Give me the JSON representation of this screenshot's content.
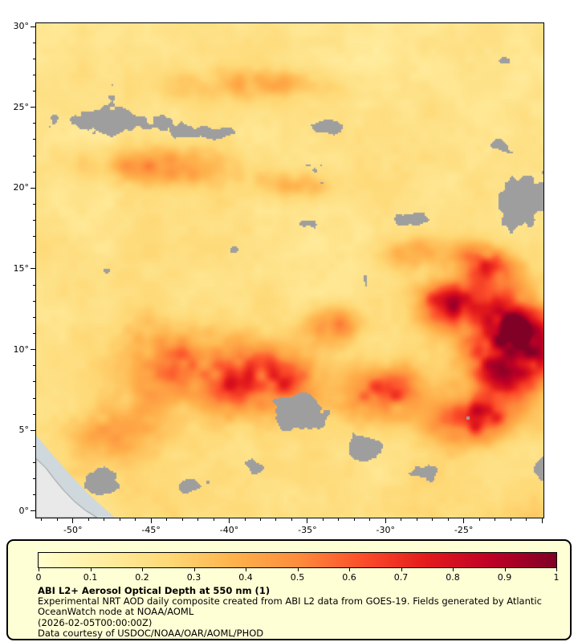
{
  "map": {
    "lat_tick_labels": [
      {
        "value": 30,
        "label": "30°"
      },
      {
        "value": 25,
        "label": "25°"
      },
      {
        "value": 20,
        "label": "20°"
      },
      {
        "value": 15,
        "label": "15°"
      },
      {
        "value": 10,
        "label": "10°"
      },
      {
        "value": 5,
        "label": "5°"
      },
      {
        "value": 0,
        "label": "0°"
      }
    ],
    "lon_tick_labels": [
      {
        "value": -50,
        "label": "-50°"
      },
      {
        "value": -45,
        "label": "-45°"
      },
      {
        "value": -40,
        "label": "-40°"
      },
      {
        "value": -35,
        "label": "-35°"
      },
      {
        "value": -30,
        "label": "-30°"
      },
      {
        "value": -25,
        "label": "-25°"
      }
    ]
  },
  "legend": {
    "background": "#ffffd6",
    "title": "ABI L2+ Aerosol Optical Depth at 550 nm (1)",
    "lines": [
      "Experimental NRT AOD daily composite created from ABI L2 data from GOES-19. Fields generated by Atlantic",
      "OceanWatch node at NOAA/AOML",
      "(2026-02-05T00:00:00Z)",
      "Data courtesy of USDOC/NOAA/OAR/AOML/PHOD"
    ],
    "colorbar_ticks": [
      {
        "value": 0,
        "label": "0"
      },
      {
        "value": 0.1,
        "label": "0.1"
      },
      {
        "value": 0.2,
        "label": "0.2"
      },
      {
        "value": 0.3,
        "label": "0.3"
      },
      {
        "value": 0.4,
        "label": "0.4"
      },
      {
        "value": 0.5,
        "label": "0.5"
      },
      {
        "value": 0.6,
        "label": "0.6"
      },
      {
        "value": 0.7,
        "label": "0.7"
      },
      {
        "value": 0.8,
        "label": "0.8"
      },
      {
        "value": 0.9,
        "label": "0.9"
      },
      {
        "value": 1,
        "label": "1"
      }
    ]
  },
  "chart_data": {
    "type": "heatmap",
    "title": "ABI L2+ Aerosol Optical Depth at 550 nm (1)",
    "variable": "Aerosol Optical Depth at 550 nm",
    "value_range": [
      0,
      1
    ],
    "lon_range": [
      -52.35,
      -19.9
    ],
    "lat_range": [
      -0.4,
      30.2
    ],
    "lat_ticks": [
      0,
      5,
      10,
      15,
      20,
      25,
      30
    ],
    "lon_ticks": [
      -50,
      -45,
      -40,
      -35,
      -30,
      -25
    ],
    "colormap": {
      "name": "YlOrRd",
      "stops": [
        "#ffffcc",
        "#ffeda0",
        "#fed976",
        "#feb24c",
        "#fd8d3c",
        "#fc4e2a",
        "#e31a1c",
        "#bd0026",
        "#800026"
      ]
    },
    "missing_data_color": "#9e9e9e",
    "land_color": "#e9e9e9",
    "coastal_nodata_color": "#cfd8dc",
    "coastline_color": "#8f8f8f",
    "field_model": {
      "base": 0.1,
      "noise_amp": 0.16,
      "south_gradient": 0.05,
      "aod_blobs": [
        [
          -22.0,
          10.2,
          3.2,
          3.6,
          0.95
        ],
        [
          -25.8,
          12.8,
          2.6,
          1.8,
          0.45
        ],
        [
          -24.5,
          5.6,
          2.6,
          1.6,
          0.55
        ],
        [
          -30.0,
          7.3,
          2.8,
          1.9,
          0.42
        ],
        [
          -37.8,
          8.0,
          4.2,
          2.4,
          0.5
        ],
        [
          -43.5,
          9.2,
          4.5,
          3.0,
          0.3
        ],
        [
          -44.5,
          21.4,
          5.5,
          1.3,
          0.3
        ],
        [
          -36.0,
          20.2,
          3.2,
          1.1,
          0.22
        ],
        [
          -38.0,
          26.4,
          7.0,
          1.3,
          0.17
        ],
        [
          -24.0,
          15.3,
          2.4,
          1.5,
          0.4
        ],
        [
          -33.3,
          11.6,
          2.2,
          1.4,
          0.3
        ],
        [
          -28.6,
          16.0,
          2.0,
          1.2,
          0.25
        ],
        [
          -47.0,
          5.0,
          3.0,
          2.0,
          0.25
        ]
      ],
      "cloud_blobs": [
        [
          -47.8,
          24.2,
          5.2,
          1.4,
          0.55
        ],
        [
          -40.5,
          23.4,
          3.8,
          1.0,
          0.45
        ],
        [
          -33.5,
          23.8,
          2.6,
          0.8,
          0.35
        ],
        [
          -21.3,
          19.3,
          3.0,
          2.9,
          0.6
        ],
        [
          -22.8,
          22.6,
          1.6,
          1.0,
          0.35
        ],
        [
          -35.2,
          17.8,
          1.6,
          0.9,
          0.4
        ],
        [
          -39.6,
          16.2,
          1.3,
          0.8,
          0.35
        ],
        [
          -32.4,
          18.9,
          1.3,
          0.8,
          0.35
        ],
        [
          -28.3,
          18.1,
          2.4,
          0.9,
          0.45
        ],
        [
          -34.0,
          20.3,
          1.5,
          0.7,
          0.3
        ],
        [
          -29.6,
          12.3,
          1.5,
          1.0,
          0.35
        ],
        [
          -33.6,
          11.8,
          1.3,
          0.9,
          0.35
        ],
        [
          -35.4,
          6.0,
          3.4,
          2.3,
          0.55
        ],
        [
          -31.3,
          3.8,
          2.4,
          1.5,
          0.45
        ],
        [
          -38.6,
          2.8,
          2.2,
          1.2,
          0.4
        ],
        [
          -42.2,
          1.6,
          2.2,
          1.1,
          0.35
        ],
        [
          -27.3,
          2.4,
          2.2,
          1.3,
          0.4
        ],
        [
          -48.7,
          1.8,
          2.6,
          1.6,
          0.4
        ],
        [
          -20.6,
          14.3,
          1.4,
          1.0,
          0.35
        ],
        [
          -22.5,
          27.8,
          1.2,
          0.7,
          0.3
        ],
        [
          -20.2,
          2.5,
          1.8,
          1.5,
          0.4
        ],
        [
          -23.5,
          0.3,
          2.0,
          1.0,
          0.35
        ]
      ]
    },
    "coastal_polygon": [
      [
        -52.35,
        4.7
      ],
      [
        -51.4,
        3.6
      ],
      [
        -50.3,
        2.4
      ],
      [
        -49.1,
        1.15
      ],
      [
        -47.9,
        0.1
      ],
      [
        -47.3,
        -0.4
      ],
      [
        -52.35,
        -0.4
      ]
    ],
    "land_polygon": [
      [
        -52.35,
        3.25
      ],
      [
        -51.75,
        2.7
      ],
      [
        -51.2,
        2.0
      ],
      [
        -50.6,
        1.3
      ],
      [
        -49.9,
        0.6
      ],
      [
        -49.2,
        0.05
      ],
      [
        -48.45,
        -0.4
      ],
      [
        -52.35,
        -0.4
      ]
    ]
  }
}
